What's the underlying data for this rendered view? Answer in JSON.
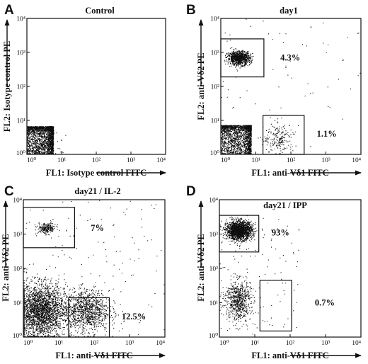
{
  "chart_data": [
    {
      "type": "scatter",
      "letter": "A",
      "title": "Control",
      "xlabel": "FL1: Isotype control FITC",
      "ylabel": "FL2: Isotype control PE",
      "xscale": "log",
      "yscale": "log",
      "xlim": [
        1,
        10000
      ],
      "ylim": [
        1,
        10000
      ],
      "xticks": [
        "10⁰",
        "10¹",
        "10²",
        "10³",
        "10⁴"
      ],
      "yticks": [
        "10⁰",
        "10¹",
        "10²",
        "10³",
        "10⁴"
      ],
      "populations": [
        {
          "type": "block",
          "x": [
            1,
            5.5
          ],
          "y": [
            1,
            6.5
          ],
          "n": 2200
        },
        {
          "type": "cluster",
          "cx": 6,
          "cy": 2,
          "sx": 0.2,
          "sy": 0.3,
          "n": 20
        }
      ],
      "gates": []
    },
    {
      "type": "scatter",
      "letter": "B",
      "title": "day1",
      "xlabel": "FL1: anti-Vδ1 FITC",
      "ylabel": "FL2: anti-Vδ2 PE",
      "xscale": "log",
      "yscale": "log",
      "xlim": [
        1,
        10000
      ],
      "ylim": [
        1,
        10000
      ],
      "xticks": [
        "10⁰",
        "10¹",
        "10²",
        "10³",
        "10⁴"
      ],
      "yticks": [
        "10⁰",
        "10¹",
        "10²",
        "10³",
        "10⁴"
      ],
      "populations": [
        {
          "type": "block",
          "x": [
            1,
            7
          ],
          "y": [
            1,
            7
          ],
          "n": 2400
        },
        {
          "type": "cluster",
          "cx": 3.2,
          "cy": 700,
          "sx": 0.16,
          "sy": 0.1,
          "n": 950
        },
        {
          "type": "cluster",
          "cx": 45,
          "cy": 3,
          "sx": 0.22,
          "sy": 0.22,
          "n": 200
        },
        {
          "type": "scatter",
          "x": [
            1,
            10000
          ],
          "y": [
            1,
            10000
          ],
          "n": 70
        }
      ],
      "gates": [
        {
          "x": [
            1,
            17
          ],
          "y": [
            190,
            2500
          ],
          "label": "4.3%",
          "lx": 50,
          "ly": 700
        },
        {
          "x": [
            16,
            240
          ],
          "y": [
            1,
            14
          ],
          "label": "1.1%",
          "lx": 550,
          "ly": 4
        }
      ]
    },
    {
      "type": "scatter",
      "letter": "C",
      "title": "day21 / IL-2",
      "xlabel": "FL1: anti-Vδ1 FITC",
      "ylabel": "FL2: anti-Vδ2 PE",
      "xscale": "log",
      "yscale": "log",
      "xlim": [
        1,
        10000
      ],
      "ylim": [
        1,
        10000
      ],
      "xticks": [
        "10⁰",
        "10¹",
        "10²",
        "10³",
        "10⁴"
      ],
      "yticks": [
        "10⁰",
        "10¹",
        "10²",
        "10³",
        "10⁴"
      ],
      "populations": [
        {
          "type": "cluster",
          "cx": 3,
          "cy": 6,
          "sx": 0.35,
          "sy": 0.38,
          "n": 2600
        },
        {
          "type": "cluster",
          "cx": 60,
          "cy": 6,
          "sx": 0.32,
          "sy": 0.3,
          "n": 1100
        },
        {
          "type": "cluster",
          "cx": 4.5,
          "cy": 1500,
          "sx": 0.13,
          "sy": 0.08,
          "n": 220
        },
        {
          "type": "scatter",
          "x": [
            1,
            10000
          ],
          "y": [
            1,
            10000
          ],
          "n": 140
        }
      ],
      "gates": [
        {
          "x": [
            1,
            28
          ],
          "y": [
            400,
            6000
          ],
          "label": "7%",
          "lx": 80,
          "ly": 1500
        },
        {
          "x": [
            19,
            270
          ],
          "y": [
            1,
            14
          ],
          "label": "12.5%",
          "lx": 600,
          "ly": 4
        }
      ]
    },
    {
      "type": "scatter",
      "letter": "D",
      "title": "day21 / IPP",
      "xlabel": "FL1: anti-Vδ1 FITC",
      "ylabel": "FL2: anti-Vδ2 PE",
      "xscale": "log",
      "yscale": "log",
      "xlim": [
        1,
        10000
      ],
      "ylim": [
        1,
        10000
      ],
      "xticks": [
        "10⁰",
        "10¹",
        "10²",
        "10³",
        "10⁴"
      ],
      "yticks": [
        "10⁰",
        "10¹",
        "10²",
        "10³",
        "10⁴"
      ],
      "populations": [
        {
          "type": "cluster",
          "cx": 3.6,
          "cy": 1300,
          "sx": 0.18,
          "sy": 0.13,
          "n": 1900
        },
        {
          "type": "cluster",
          "cx": 3.3,
          "cy": 12,
          "sx": 0.18,
          "sy": 0.3,
          "n": 700
        },
        {
          "type": "scatter",
          "x": [
            1,
            200
          ],
          "y": [
            1,
            3000
          ],
          "n": 120
        }
      ],
      "gates": [
        {
          "x": [
            1,
            13
          ],
          "y": [
            300,
            3500
          ],
          "label": "93%",
          "lx": 30,
          "ly": 1100
        },
        {
          "x": [
            14,
            110
          ],
          "y": [
            1.5,
            45
          ],
          "label": "0.7%",
          "lx": 500,
          "ly": 10
        }
      ]
    }
  ]
}
